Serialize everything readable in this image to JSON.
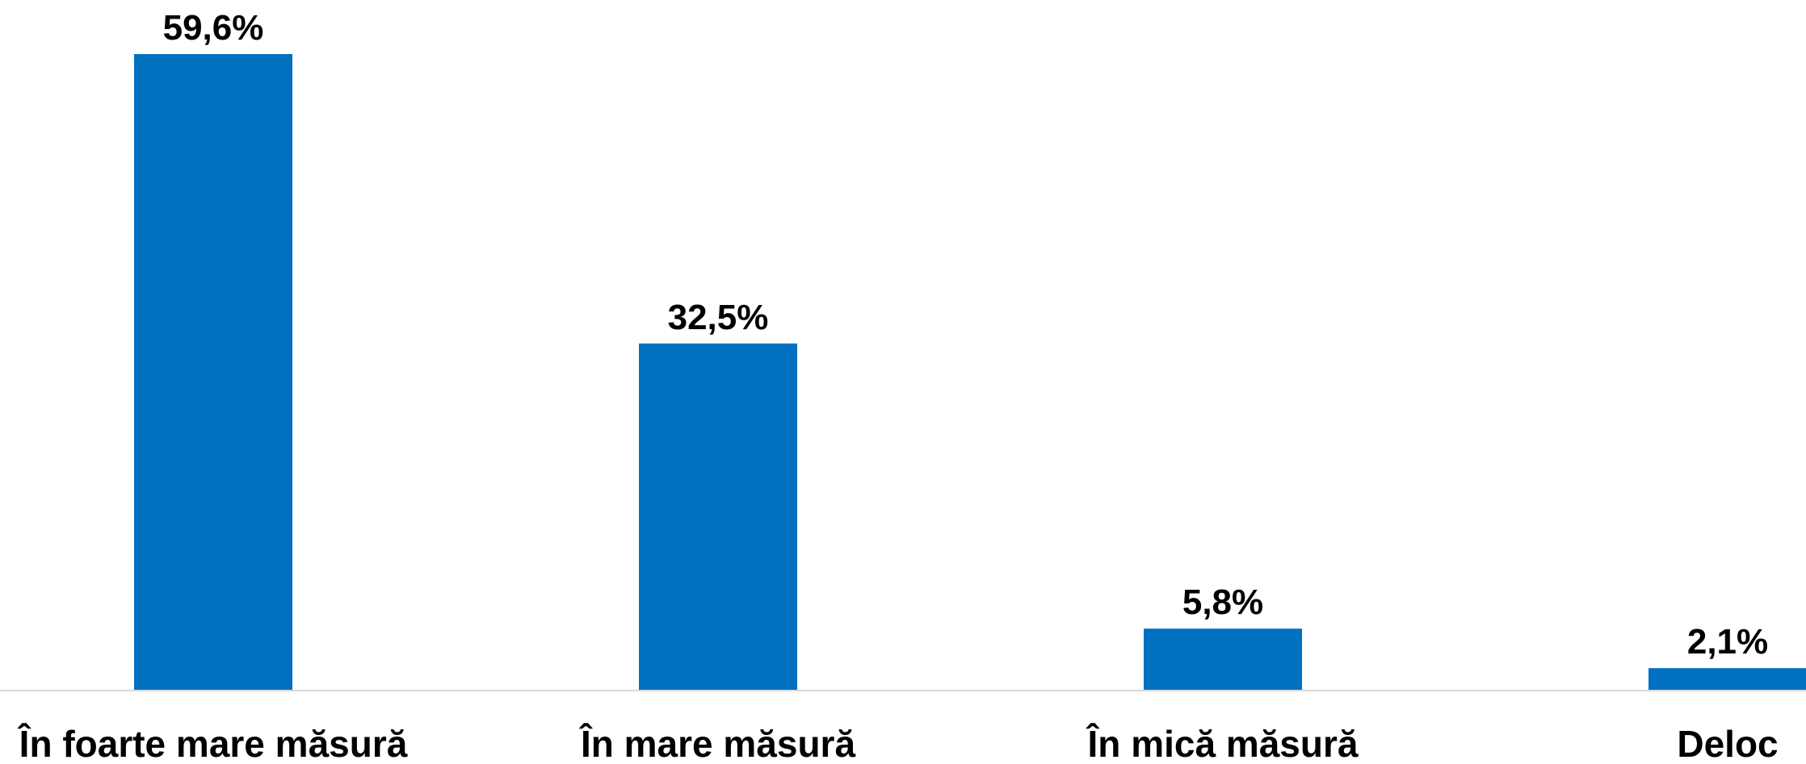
{
  "chart_data": {
    "type": "bar",
    "categories": [
      "În foarte mare măsură",
      "În mare măsură",
      "În mică măsură",
      "Deloc"
    ],
    "values": [
      59.6,
      32.5,
      5.8,
      2.1
    ],
    "value_labels": [
      "59,6%",
      "32,5%",
      "5,8%",
      "2,1%"
    ],
    "ylim": [
      0,
      59.6
    ],
    "grid": false,
    "legend": "none",
    "bar_color": "#0070C0",
    "axis_color": "#D9D9D9"
  }
}
